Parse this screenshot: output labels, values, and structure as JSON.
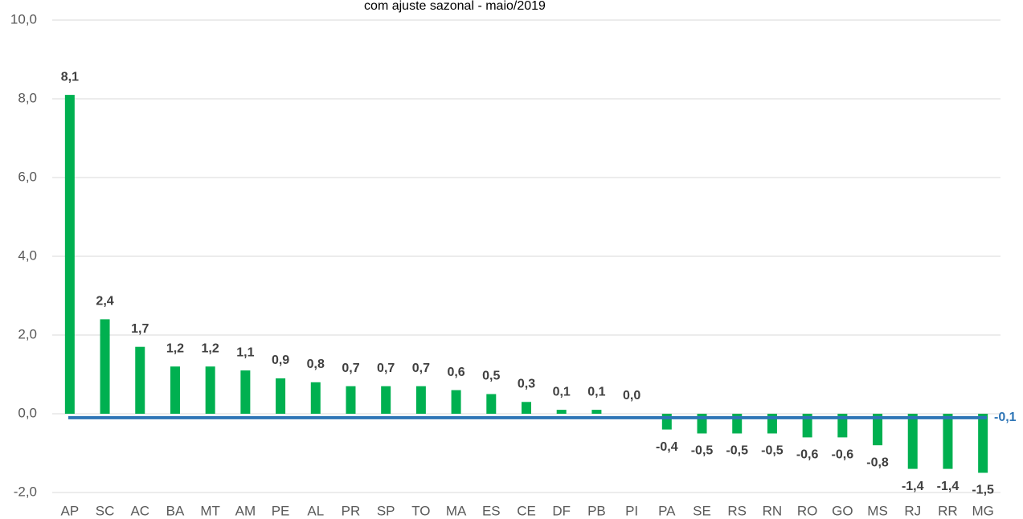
{
  "chart_data": {
    "type": "bar",
    "title": "com ajuste sazonal - maio/2019",
    "categories": [
      "AP",
      "SC",
      "AC",
      "BA",
      "MT",
      "AM",
      "PE",
      "AL",
      "PR",
      "SP",
      "TO",
      "MA",
      "ES",
      "CE",
      "DF",
      "PB",
      "PI",
      "PA",
      "SE",
      "RS",
      "RN",
      "RO",
      "GO",
      "MS",
      "RJ",
      "RR",
      "MG"
    ],
    "values": [
      8.1,
      2.4,
      1.7,
      1.2,
      1.2,
      1.1,
      0.9,
      0.8,
      0.7,
      0.7,
      0.7,
      0.6,
      0.5,
      0.3,
      0.1,
      0.1,
      0.0,
      -0.4,
      -0.5,
      -0.5,
      -0.5,
      -0.6,
      -0.6,
      -0.8,
      -1.4,
      -1.4,
      -1.5
    ],
    "value_labels": [
      "8,1",
      "2,4",
      "1,7",
      "1,2",
      "1,2",
      "1,1",
      "0,9",
      "0,8",
      "0,7",
      "0,7",
      "0,7",
      "0,6",
      "0,5",
      "0,3",
      "0,1",
      "0,1",
      "0,0",
      "-0,4",
      "-0,5",
      "-0,5",
      "-0,5",
      "-0,6",
      "-0,6",
      "-0,8",
      "-1,4",
      "-1,4",
      "-1,5"
    ],
    "color": "#00b050",
    "reference_line": {
      "value": -0.1,
      "label": "-0,1",
      "color": "#2e75b6"
    },
    "ylim": [
      -2,
      10
    ],
    "yticks": [
      {
        "value": 10,
        "label": "10,0"
      },
      {
        "value": 8,
        "label": "8,0"
      },
      {
        "value": 6,
        "label": "6,0"
      },
      {
        "value": 4,
        "label": "4,0"
      },
      {
        "value": 2,
        "label": "2,0"
      },
      {
        "value": 0,
        "label": "0,0"
      },
      {
        "value": -2,
        "label": "-2,0"
      }
    ],
    "grid": true
  }
}
